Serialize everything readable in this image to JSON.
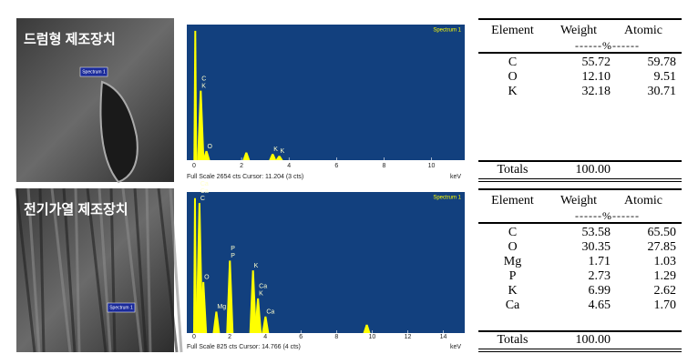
{
  "panels": [
    {
      "label": "드럼형 제조장치",
      "sem_tag": "Spectrum 1",
      "spectrum": {
        "type": "line",
        "title": "Spectrum 1",
        "xlim": [
          0,
          11.4
        ],
        "xticks": [
          0,
          2,
          4,
          6,
          8,
          10
        ],
        "x_unit": "keV",
        "footer": "Full Scale 2654 cts Cursor: 11.204 (3 cts)",
        "ylim": [
          0,
          2654
        ],
        "peaks": [
          {
            "x": 0.05,
            "counts": 2600
          },
          {
            "x": 0.28,
            "counts": 1380,
            "labels": [
              "C",
              "K"
            ]
          },
          {
            "x": 0.52,
            "counts": 150,
            "labels": [
              "O"
            ]
          },
          {
            "x": 2.2,
            "counts": 120
          },
          {
            "x": 3.31,
            "counts": 90,
            "labels": [
              "K"
            ]
          },
          {
            "x": 3.59,
            "counts": 50,
            "labels": [
              "K"
            ]
          }
        ]
      },
      "table": {
        "headers": [
          "Element",
          "Weight",
          "Atomic"
        ],
        "unit": "------%------",
        "rows": [
          [
            "C",
            "55.72",
            "59.78"
          ],
          [
            "O",
            "12.10",
            "9.51"
          ],
          [
            "K",
            "32.18",
            "30.71"
          ]
        ],
        "totals": [
          "Totals",
          "100.00"
        ]
      }
    },
    {
      "label": "전기가열 제조장치",
      "sem_tag": "Spectrum 1",
      "spectrum": {
        "type": "line",
        "title": "Spectrum 1",
        "xlim": [
          0,
          15.2
        ],
        "xticks": [
          0,
          2,
          4,
          6,
          8,
          10,
          12,
          14
        ],
        "x_unit": "keV",
        "footer": "Full Scale 825 cts Cursor: 14.766 (4 cts)",
        "ylim": [
          0,
          825
        ],
        "peaks": [
          {
            "x": 0.05,
            "counts": 810
          },
          {
            "x": 0.3,
            "counts": 780,
            "labels": [
              "Ca",
              "Ca",
              "C"
            ]
          },
          {
            "x": 0.52,
            "counts": 300,
            "labels": [
              "O"
            ]
          },
          {
            "x": 1.25,
            "counts": 120,
            "labels": [
              "Mg"
            ]
          },
          {
            "x": 2.01,
            "counts": 430,
            "labels": [
              "P",
              "P"
            ]
          },
          {
            "x": 3.31,
            "counts": 370,
            "labels": [
              "K"
            ]
          },
          {
            "x": 3.59,
            "counts": 200,
            "labels": [
              "Ca",
              "K"
            ]
          },
          {
            "x": 4.01,
            "counts": 90,
            "labels": [
              "Ca"
            ]
          },
          {
            "x": 9.7,
            "counts": 40
          }
        ]
      },
      "table": {
        "headers": [
          "Element",
          "Weight",
          "Atomic"
        ],
        "unit": "------%------",
        "rows": [
          [
            "C",
            "53.58",
            "65.50"
          ],
          [
            "O",
            "30.35",
            "27.85"
          ],
          [
            "Mg",
            "1.71",
            "1.03"
          ],
          [
            "P",
            "2.73",
            "1.29"
          ],
          [
            "K",
            "6.99",
            "2.62"
          ],
          [
            "Ca",
            "4.65",
            "1.70"
          ]
        ],
        "totals": [
          "Totals",
          "100.00"
        ]
      }
    }
  ]
}
